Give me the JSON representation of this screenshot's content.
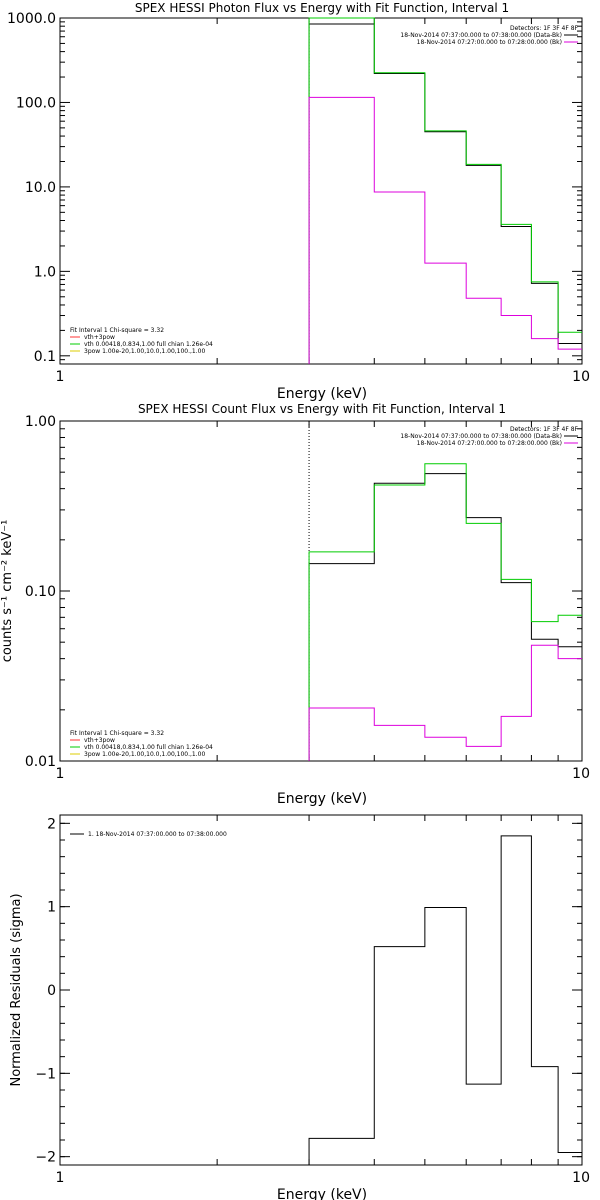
{
  "colors": {
    "black": "#000000",
    "green": "#00cc00",
    "magenta": "#dd00dd",
    "red": "#ff3333",
    "yellow": "#ddcc00"
  },
  "chart_data": [
    {
      "type": "line",
      "title": "SPEX HESSI Photon Flux vs Energy with Fit Function, Interval 1",
      "xlabel": "Energy (keV)",
      "ylabel": "",
      "xscale": "log",
      "yscale": "log",
      "xlim": [
        1,
        10
      ],
      "ylim": [
        0.08,
        1000
      ],
      "xticks": [
        1,
        10
      ],
      "xtick_labels": [
        "1",
        "10"
      ],
      "yticks": [
        0.1,
        1,
        10,
        100,
        1000
      ],
      "ytick_labels": [
        "0.1",
        "1.0",
        "10.0",
        "100.0",
        "1000.0"
      ],
      "vline": 3,
      "vline_style": "dotted",
      "bin_edges": [
        3,
        4,
        5,
        6,
        7,
        8,
        9,
        10
      ],
      "legend_top": [
        "Detectors: 1F 3F 4F 8F",
        "18-Nov-2014 07:37:00.000 to 07:38:00.000 (Data-Bk)",
        "18-Nov-2014 07:27:00.000 to 07:28:00.000 (Bk)"
      ],
      "legend_bottom": [
        "Fit Interval 1   Chi-square = 3.32",
        "vth+3pow",
        "vth 0.00418,0.834,1.00  full chian 1.26e-04",
        "3pow 1.00e-20,1.00,10.0,1.00,100.,1.00"
      ],
      "series": [
        {
          "name": "18-Nov-2014 07:37:00.000 to 07:38:00.000 (Data-Bk)",
          "values": [
            850,
            220,
            45,
            18,
            3.4,
            0.72,
            0.14
          ]
        },
        {
          "values": [
            1000,
            225,
            46,
            18.5,
            3.6,
            0.75,
            0.19
          ]
        },
        {
          "name": "18-Nov-2014 07:27:00.000 to 07:28:00.000 (Bk)",
          "values": [
            115,
            8.7,
            1.25,
            0.48,
            0.3,
            0.16,
            0.12
          ]
        }
      ]
    },
    {
      "type": "line",
      "title": "SPEX HESSI Count Flux vs Energy with Fit Function, Interval 1",
      "xlabel": "Energy (keV)",
      "ylabel": "counts s⁻¹ cm⁻² keV⁻¹",
      "xscale": "log",
      "yscale": "log",
      "xlim": [
        1,
        10
      ],
      "ylim": [
        0.01,
        1.0
      ],
      "xticks": [
        1,
        10
      ],
      "xtick_labels": [
        "1",
        "10"
      ],
      "yticks": [
        0.01,
        0.1,
        1.0
      ],
      "ytick_labels": [
        "0.01",
        "0.10",
        "1.00"
      ],
      "vline": 3,
      "vline_style": "dotted",
      "bin_edges": [
        3,
        4,
        5,
        6,
        7,
        8,
        9,
        10
      ],
      "legend_top": [
        "Detectors: 1F 3F 4F 8F",
        "18-Nov-2014 07:37:00.000 to 07:38:00.000 (Data-Bk)",
        "18-Nov-2014 07:27:00.000 to 07:28:00.000 (Bk)"
      ],
      "legend_bottom": [
        "Fit Interval 1   Chi-square = 3.32",
        "vth+3pow",
        "vth 0.00418,0.834,1.00  full chian 1.26e-04",
        "3pow 1.00e-20,1.00,10.0,1.00,100.,1.00"
      ],
      "series": [
        {
          "name": "18-Nov-2014 07:37:00.000 to 07:38:00.000 (Data-Bk)",
          "values": [
            0.145,
            0.43,
            0.49,
            0.27,
            0.112,
            0.052,
            0.047
          ]
        },
        {
          "values": [
            0.17,
            0.42,
            0.56,
            0.25,
            0.117,
            0.066,
            0.072
          ]
        },
        {
          "name": "18-Nov-2014 07:27:00.000 to 07:28:00.000 (Bk)",
          "values": [
            0.0205,
            0.0162,
            0.0138,
            0.0122,
            0.0183,
            0.048,
            0.04
          ]
        }
      ]
    },
    {
      "type": "line",
      "title": "",
      "xlabel": "Energy (keV)",
      "ylabel": "Normalized Residuals (sigma)",
      "xscale": "log",
      "yscale": "linear",
      "xlim": [
        1,
        10
      ],
      "ylim": [
        -2.1,
        2.1
      ],
      "xticks": [
        1,
        10
      ],
      "xtick_labels": [
        "1",
        "10"
      ],
      "yticks": [
        -2,
        -1,
        0,
        1,
        2
      ],
      "ytick_labels": [
        "−2",
        "−1",
        "0",
        "1",
        "2"
      ],
      "bin_edges": [
        3,
        4,
        5,
        6,
        7,
        8,
        9,
        10
      ],
      "legend": "1. 18-Nov-2014 07:37:00.000 to 07:38:00.000",
      "series": [
        {
          "name": "1. 18-Nov-2014 07:37:00.000 to 07:38:00.000",
          "values": [
            -1.78,
            0.52,
            0.99,
            -1.13,
            1.85,
            -0.92,
            -1.95
          ]
        }
      ]
    }
  ]
}
